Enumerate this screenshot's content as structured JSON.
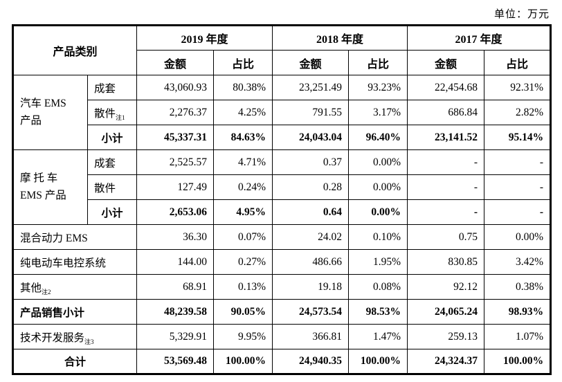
{
  "unit_label": "单位：万元",
  "table": {
    "header": {
      "category": "产品类别",
      "years": [
        "2019 年度",
        "2018 年度",
        "2017 年度"
      ],
      "amount": "金额",
      "ratio": "占比"
    },
    "rows": [
      {
        "kind": "sub",
        "group": "汽车 EMS\n产品",
        "groupSpan": 3,
        "label": "成套",
        "note": "",
        "bold": false,
        "center": false,
        "values": [
          "43,060.93",
          "80.38%",
          "23,251.49",
          "93.23%",
          "22,454.68",
          "92.31%"
        ]
      },
      {
        "kind": "sub",
        "label": "散件",
        "note": "注1",
        "bold": false,
        "center": false,
        "values": [
          "2,276.37",
          "4.25%",
          "791.55",
          "3.17%",
          "686.84",
          "2.82%"
        ]
      },
      {
        "kind": "sub",
        "label": "小计",
        "note": "",
        "bold": true,
        "center": true,
        "values": [
          "45,337.31",
          "84.63%",
          "24,043.04",
          "96.40%",
          "23,141.52",
          "95.14%"
        ]
      },
      {
        "kind": "sub",
        "group": "摩 托 车\nEMS 产品",
        "groupSpan": 3,
        "label": "成套",
        "note": "",
        "bold": false,
        "center": false,
        "values": [
          "2,525.57",
          "4.71%",
          "0.37",
          "0.00%",
          "-",
          "-"
        ]
      },
      {
        "kind": "sub",
        "label": "散件",
        "note": "",
        "bold": false,
        "center": false,
        "values": [
          "127.49",
          "0.24%",
          "0.28",
          "0.00%",
          "-",
          "-"
        ]
      },
      {
        "kind": "sub",
        "label": "小计",
        "note": "",
        "bold": true,
        "center": true,
        "values": [
          "2,653.06",
          "4.95%",
          "0.64",
          "0.00%",
          "-",
          "-"
        ]
      },
      {
        "kind": "full",
        "label": "混合动力 EMS",
        "note": "",
        "bold": false,
        "center": false,
        "values": [
          "36.30",
          "0.07%",
          "24.02",
          "0.10%",
          "0.75",
          "0.00%"
        ]
      },
      {
        "kind": "full",
        "label": "纯电动车电控系统",
        "note": "",
        "bold": false,
        "center": false,
        "values": [
          "144.00",
          "0.27%",
          "486.66",
          "1.95%",
          "830.85",
          "3.42%"
        ]
      },
      {
        "kind": "full",
        "label": "其他",
        "note": "注2",
        "bold": false,
        "center": false,
        "values": [
          "68.91",
          "0.13%",
          "19.18",
          "0.08%",
          "92.12",
          "0.38%"
        ]
      },
      {
        "kind": "full",
        "label": "产品销售小计",
        "note": "",
        "bold": true,
        "center": false,
        "values": [
          "48,239.58",
          "90.05%",
          "24,573.54",
          "98.53%",
          "24,065.24",
          "98.93%"
        ]
      },
      {
        "kind": "full",
        "label": "技术开发服务",
        "note": "注3",
        "bold": false,
        "center": false,
        "values": [
          "5,329.91",
          "9.95%",
          "366.81",
          "1.47%",
          "259.13",
          "1.07%"
        ]
      },
      {
        "kind": "full",
        "label": "合计",
        "note": "",
        "bold": true,
        "center": true,
        "values": [
          "53,569.48",
          "100.00%",
          "24,940.35",
          "100.00%",
          "24,324.37",
          "100.00%"
        ]
      }
    ]
  }
}
